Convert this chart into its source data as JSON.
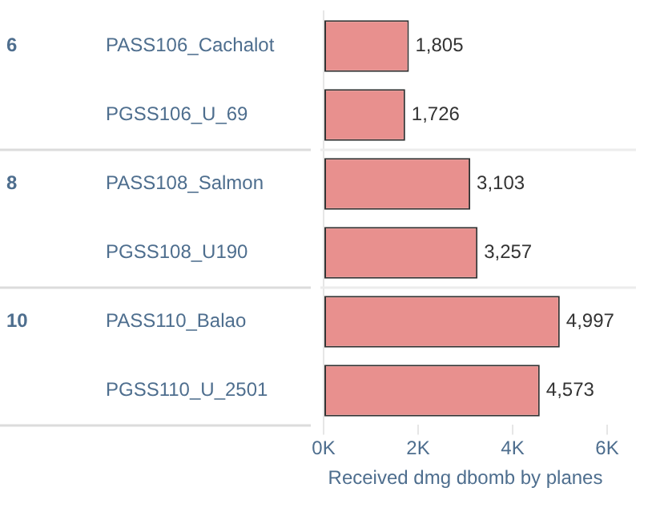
{
  "chart_data": {
    "type": "bar",
    "orientation": "horizontal",
    "categories": [
      "PASS106_Cachalot",
      "PGSS106_U_69",
      "PASS108_Salmon",
      "PGSS108_U190",
      "PASS110_Balao",
      "PGSS110_U_2501"
    ],
    "values": [
      1805,
      1726,
      3103,
      3257,
      4997,
      4573
    ],
    "value_labels": [
      "1,805",
      "1,726",
      "3,103",
      "3,257",
      "4,997",
      "4,573"
    ],
    "color": "#e8908e",
    "xlabel": "Received dmg dbomb by planes",
    "xlim": [
      0,
      6000
    ],
    "xticks": [
      {
        "value": 0,
        "label": "0K"
      },
      {
        "value": 2000,
        "label": "2K"
      },
      {
        "value": 4000,
        "label": "4K"
      },
      {
        "value": 6000,
        "label": "6K"
      }
    ],
    "annotations": [
      "6",
      "8",
      "10"
    ],
    "grid": false,
    "legend": false
  }
}
